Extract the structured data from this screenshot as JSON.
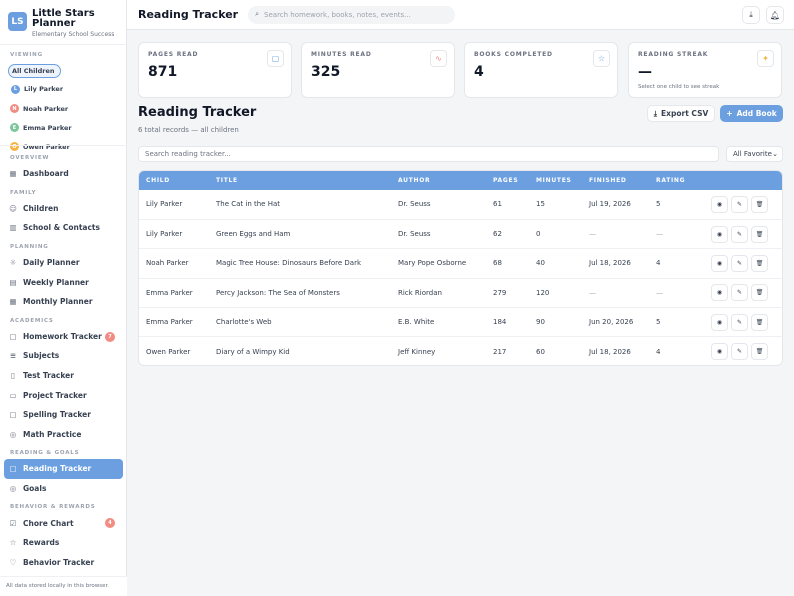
{
  "brand": {
    "logo": "LS",
    "title": "Little Stars Planner",
    "subtitle": "Elementary School Success"
  },
  "viewing": {
    "label": "VIEWING",
    "chips": [
      {
        "label": "All Children",
        "active": true
      },
      {
        "label": "Lily Parker",
        "initial": "L",
        "color": "#6b9fe0"
      }
    ],
    "children": [
      {
        "label": "Noah Parker",
        "initial": "N",
        "color": "#f28b82"
      },
      {
        "label": "Emma Parker",
        "initial": "E",
        "color": "#7cc69b"
      },
      {
        "label": "Owen Parker",
        "initial": "O",
        "color": "#f5b342"
      }
    ]
  },
  "nav": {
    "overview_label": "OVERVIEW",
    "dashboard": "Dashboard",
    "family_label": "FAMILY",
    "children": "Children",
    "school_contacts": "School & Contacts",
    "planning_label": "PLANNING",
    "daily": "Daily Planner",
    "weekly": "Weekly Planner",
    "monthly": "Monthly Planner",
    "academics_label": "ACADEMICS",
    "homework": "Homework Tracker",
    "homework_badge": "7",
    "subjects": "Subjects",
    "test": "Test Tracker",
    "project": "Project Tracker",
    "spelling": "Spelling Tracker",
    "math": "Math Practice",
    "reading_goals_label": "READING & GOALS",
    "reading": "Reading Tracker",
    "goals": "Goals",
    "behavior_label": "BEHAVIOR & REWARDS",
    "chore": "Chore Chart",
    "chore_badge": "4",
    "rewards": "Rewards",
    "behavior": "Behavior Tracker"
  },
  "footer_note": "All data stored locally in this browser.",
  "topbar": {
    "title": "Reading Tracker",
    "search_placeholder": "Search homework, books, notes, events..."
  },
  "stats": [
    {
      "label": "PAGES READ",
      "value": "871",
      "icon": "book-icon",
      "icon_color": "#6b9fe0"
    },
    {
      "label": "MINUTES READ",
      "value": "325",
      "icon": "activity-icon",
      "icon_color": "#f28b82"
    },
    {
      "label": "BOOKS COMPLETED",
      "value": "4",
      "icon": "star-icon",
      "icon_color": "#6b9fe0"
    },
    {
      "label": "READING STREAK",
      "value": "—",
      "hint": "Select one child to see streak",
      "icon": "sparkle-icon",
      "icon_color": "#f5b342"
    }
  ],
  "section": {
    "title": "Reading Tracker",
    "subtitle": "6 total records — all children",
    "export_label": "Export CSV",
    "add_label": "Add Book",
    "search_placeholder": "Search reading tracker...",
    "filter_value": "All Favorite"
  },
  "table": {
    "headers": [
      "CHILD",
      "TITLE",
      "AUTHOR",
      "PAGES",
      "MINUTES",
      "FINISHED",
      "RATING",
      ""
    ],
    "rows": [
      [
        "Lily Parker",
        "The Cat in the Hat",
        "Dr. Seuss",
        "61",
        "15",
        "Jul 19, 2026",
        "5"
      ],
      [
        "Lily Parker",
        "Green Eggs and Ham",
        "Dr. Seuss",
        "62",
        "0",
        "—",
        "—"
      ],
      [
        "Noah Parker",
        "Magic Tree House: Dinosaurs Before Dark",
        "Mary Pope Osborne",
        "68",
        "40",
        "Jul 18, 2026",
        "4"
      ],
      [
        "Emma Parker",
        "Percy Jackson: The Sea of Monsters",
        "Rick Riordan",
        "279",
        "120",
        "—",
        "—"
      ],
      [
        "Emma Parker",
        "Charlotte's Web",
        "E.B. White",
        "184",
        "90",
        "Jun 20, 2026",
        "5"
      ],
      [
        "Owen Parker",
        "Diary of a Wimpy Kid",
        "Jeff Kinney",
        "217",
        "60",
        "Jul 18, 2026",
        "4"
      ]
    ]
  }
}
